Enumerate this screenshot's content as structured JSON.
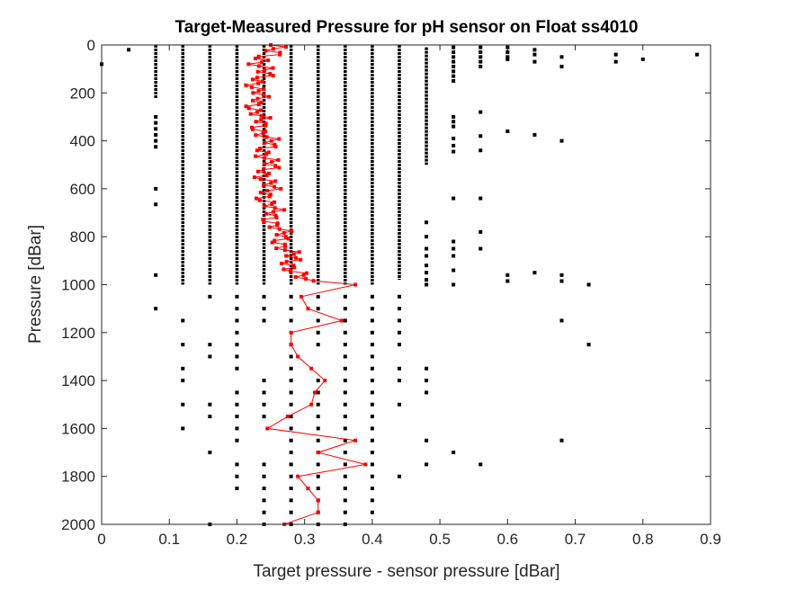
{
  "chart_data": {
    "type": "scatter",
    "title": "Target-Measured Pressure for pH sensor on Float ss4010",
    "xlabel": "Target pressure - sensor pressure [dBar]",
    "ylabel": "Pressure [dBar]",
    "xlim": [
      0,
      0.9
    ],
    "ylim": [
      0,
      2000
    ],
    "y_reversed": true,
    "x_ticks": [
      "0",
      "0.1",
      "0.2",
      "0.3",
      "0.4",
      "0.5",
      "0.6",
      "0.7",
      "0.8",
      "0.9"
    ],
    "y_ticks": [
      "0",
      "200",
      "400",
      "600",
      "800",
      "1000",
      "1200",
      "1400",
      "1600",
      "1800",
      "2000"
    ],
    "grid": false,
    "colors": {
      "black_series": "#000000",
      "red_series": "#ff0000"
    },
    "series": [
      {
        "style": "black square markers, dense columns (0-1000 dBar) at discrete offsets",
        "columns": [
          {
            "x": 0.08,
            "ymin": 0,
            "ymax": 225
          },
          {
            "x": 0.12,
            "ymin": 0,
            "ymax": 1000
          },
          {
            "x": 0.16,
            "ymin": 0,
            "ymax": 1000
          },
          {
            "x": 0.2,
            "ymin": 0,
            "ymax": 1000
          },
          {
            "x": 0.24,
            "ymin": 0,
            "ymax": 1000
          },
          {
            "x": 0.28,
            "ymin": 0,
            "ymax": 1000
          },
          {
            "x": 0.32,
            "ymin": 0,
            "ymax": 1000
          },
          {
            "x": 0.36,
            "ymin": 0,
            "ymax": 1000
          },
          {
            "x": 0.4,
            "ymin": 0,
            "ymax": 1000
          },
          {
            "x": 0.44,
            "ymin": 0,
            "ymax": 980
          },
          {
            "x": 0.48,
            "ymin": 10,
            "ymax": 500
          }
        ],
        "points": [
          [
            0,
            80
          ],
          [
            0.04,
            20
          ],
          [
            0.08,
            300
          ],
          [
            0.08,
            325
          ],
          [
            0.08,
            350
          ],
          [
            0.08,
            375
          ],
          [
            0.08,
            400
          ],
          [
            0.08,
            425
          ],
          [
            0.08,
            600
          ],
          [
            0.08,
            665
          ],
          [
            0.08,
            960
          ],
          [
            0.48,
            740
          ],
          [
            0.48,
            800
          ],
          [
            0.48,
            850
          ],
          [
            0.48,
            880
          ],
          [
            0.48,
            920
          ],
          [
            0.48,
            950
          ],
          [
            0.48,
            980
          ],
          [
            0.48,
            1000
          ],
          [
            0.52,
            10
          ],
          [
            0.52,
            30
          ],
          [
            0.52,
            50
          ],
          [
            0.52,
            70
          ],
          [
            0.52,
            90
          ],
          [
            0.52,
            110
          ],
          [
            0.52,
            130
          ],
          [
            0.52,
            150
          ],
          [
            0.52,
            300
          ],
          [
            0.52,
            320
          ],
          [
            0.52,
            340
          ],
          [
            0.52,
            390
          ],
          [
            0.52,
            420
          ],
          [
            0.52,
            445
          ],
          [
            0.52,
            640
          ],
          [
            0.52,
            820
          ],
          [
            0.52,
            850
          ],
          [
            0.52,
            880
          ],
          [
            0.52,
            940
          ],
          [
            0.52,
            1000
          ],
          [
            0.56,
            10
          ],
          [
            0.56,
            30
          ],
          [
            0.56,
            50
          ],
          [
            0.56,
            70
          ],
          [
            0.56,
            90
          ],
          [
            0.56,
            280
          ],
          [
            0.56,
            380
          ],
          [
            0.56,
            440
          ],
          [
            0.56,
            640
          ],
          [
            0.56,
            780
          ],
          [
            0.56,
            850
          ],
          [
            0.6,
            10
          ],
          [
            0.6,
            30
          ],
          [
            0.6,
            50
          ],
          [
            0.6,
            60
          ],
          [
            0.6,
            360
          ],
          [
            0.6,
            960
          ],
          [
            0.6,
            985
          ],
          [
            0.64,
            20
          ],
          [
            0.64,
            40
          ],
          [
            0.64,
            70
          ],
          [
            0.64,
            375
          ],
          [
            0.64,
            950
          ],
          [
            0.68,
            50
          ],
          [
            0.68,
            90
          ],
          [
            0.68,
            400
          ],
          [
            0.68,
            960
          ],
          [
            0.68,
            985
          ],
          [
            0.72,
            1000
          ],
          [
            0.76,
            40
          ],
          [
            0.76,
            70
          ],
          [
            0.8,
            60
          ],
          [
            0.88,
            40
          ],
          [
            0.08,
            1100
          ],
          [
            0.12,
            1150
          ],
          [
            0.12,
            1250
          ],
          [
            0.12,
            1350
          ],
          [
            0.12,
            1400
          ],
          [
            0.12,
            1500
          ],
          [
            0.12,
            1600
          ],
          [
            0.16,
            1050
          ],
          [
            0.16,
            1250
          ],
          [
            0.16,
            1300
          ],
          [
            0.16,
            1500
          ],
          [
            0.16,
            1550
          ],
          [
            0.16,
            1700
          ],
          [
            0.16,
            2000
          ],
          [
            0.2,
            1050
          ],
          [
            0.2,
            1100
          ],
          [
            0.2,
            1150
          ],
          [
            0.2,
            1200
          ],
          [
            0.2,
            1250
          ],
          [
            0.2,
            1300
          ],
          [
            0.2,
            1350
          ],
          [
            0.2,
            1450
          ],
          [
            0.2,
            1500
          ],
          [
            0.2,
            1550
          ],
          [
            0.2,
            1600
          ],
          [
            0.2,
            1650
          ],
          [
            0.2,
            1750
          ],
          [
            0.2,
            1800
          ],
          [
            0.2,
            1850
          ],
          [
            0.24,
            1050
          ],
          [
            0.24,
            1100
          ],
          [
            0.24,
            1150
          ],
          [
            0.24,
            1400
          ],
          [
            0.24,
            1450
          ],
          [
            0.24,
            1500
          ],
          [
            0.24,
            1550
          ],
          [
            0.24,
            1750
          ],
          [
            0.24,
            1800
          ],
          [
            0.24,
            1850
          ],
          [
            0.24,
            1900
          ],
          [
            0.24,
            1950
          ],
          [
            0.24,
            2000
          ],
          [
            0.28,
            1050
          ],
          [
            0.28,
            1100
          ],
          [
            0.28,
            1150
          ],
          [
            0.28,
            1250
          ],
          [
            0.28,
            1300
          ],
          [
            0.28,
            1350
          ],
          [
            0.28,
            1400
          ],
          [
            0.28,
            1450
          ],
          [
            0.28,
            1500
          ],
          [
            0.28,
            1550
          ],
          [
            0.28,
            1600
          ],
          [
            0.28,
            1650
          ],
          [
            0.28,
            1700
          ],
          [
            0.28,
            1750
          ],
          [
            0.28,
            1800
          ],
          [
            0.28,
            1850
          ],
          [
            0.28,
            1900
          ],
          [
            0.28,
            1950
          ],
          [
            0.28,
            2000
          ],
          [
            0.32,
            1050
          ],
          [
            0.32,
            1100
          ],
          [
            0.32,
            1150
          ],
          [
            0.32,
            1200
          ],
          [
            0.32,
            1250
          ],
          [
            0.32,
            1400
          ],
          [
            0.32,
            1450
          ],
          [
            0.32,
            1500
          ],
          [
            0.32,
            1550
          ],
          [
            0.32,
            1600
          ],
          [
            0.32,
            1650
          ],
          [
            0.32,
            1700
          ],
          [
            0.32,
            1750
          ],
          [
            0.32,
            1800
          ],
          [
            0.32,
            1850
          ],
          [
            0.32,
            1900
          ],
          [
            0.32,
            1950
          ],
          [
            0.32,
            2000
          ],
          [
            0.36,
            1050
          ],
          [
            0.36,
            1100
          ],
          [
            0.36,
            1150
          ],
          [
            0.36,
            1200
          ],
          [
            0.36,
            1250
          ],
          [
            0.36,
            1300
          ],
          [
            0.36,
            1350
          ],
          [
            0.36,
            1400
          ],
          [
            0.36,
            1450
          ],
          [
            0.36,
            1500
          ],
          [
            0.36,
            1550
          ],
          [
            0.36,
            1600
          ],
          [
            0.36,
            1650
          ],
          [
            0.36,
            1700
          ],
          [
            0.36,
            1750
          ],
          [
            0.36,
            1800
          ],
          [
            0.36,
            1850
          ],
          [
            0.36,
            1900
          ],
          [
            0.36,
            1950
          ],
          [
            0.36,
            2000
          ],
          [
            0.4,
            1050
          ],
          [
            0.4,
            1100
          ],
          [
            0.4,
            1150
          ],
          [
            0.4,
            1200
          ],
          [
            0.4,
            1250
          ],
          [
            0.4,
            1300
          ],
          [
            0.4,
            1350
          ],
          [
            0.4,
            1400
          ],
          [
            0.4,
            1450
          ],
          [
            0.4,
            1500
          ],
          [
            0.4,
            1550
          ],
          [
            0.4,
            1600
          ],
          [
            0.4,
            1650
          ],
          [
            0.4,
            1700
          ],
          [
            0.4,
            1750
          ],
          [
            0.4,
            1800
          ],
          [
            0.4,
            1850
          ],
          [
            0.4,
            1900
          ],
          [
            0.4,
            1950
          ],
          [
            0.44,
            1050
          ],
          [
            0.44,
            1100
          ],
          [
            0.44,
            1150
          ],
          [
            0.44,
            1200
          ],
          [
            0.44,
            1250
          ],
          [
            0.44,
            1350
          ],
          [
            0.44,
            1400
          ],
          [
            0.44,
            1500
          ],
          [
            0.44,
            1800
          ],
          [
            0.48,
            1350
          ],
          [
            0.48,
            1400
          ],
          [
            0.48,
            1450
          ],
          [
            0.48,
            1650
          ],
          [
            0.48,
            1750
          ],
          [
            0.52,
            1700
          ],
          [
            0.56,
            1750
          ],
          [
            0.68,
            1150
          ],
          [
            0.68,
            1650
          ],
          [
            0.72,
            1250
          ]
        ]
      },
      {
        "style": "red line with square markers",
        "points_shallow_zigzag": {
          "pmin": 0,
          "pmax": 990,
          "step": 8,
          "x_center_profile": [
            [
              0,
              0.25
            ],
            [
              120,
              0.235
            ],
            [
              200,
              0.23
            ],
            [
              300,
              0.23
            ],
            [
              400,
              0.245
            ],
            [
              500,
              0.245
            ],
            [
              600,
              0.245
            ],
            [
              700,
              0.25
            ],
            [
              800,
              0.265
            ],
            [
              900,
              0.28
            ],
            [
              990,
              0.295
            ]
          ],
          "x_halfwidth_profile": [
            [
              0,
              0.03
            ],
            [
              200,
              0.018
            ],
            [
              500,
              0.022
            ],
            [
              800,
              0.02
            ],
            [
              990,
              0.022
            ]
          ]
        },
        "points_deep": [
          [
            0.375,
            1000
          ],
          [
            0.295,
            1050
          ],
          [
            0.305,
            1100
          ],
          [
            0.355,
            1150
          ],
          [
            0.28,
            1200
          ],
          [
            0.28,
            1250
          ],
          [
            0.29,
            1300
          ],
          [
            0.31,
            1350
          ],
          [
            0.33,
            1400
          ],
          [
            0.315,
            1450
          ],
          [
            0.31,
            1500
          ],
          [
            0.275,
            1550
          ],
          [
            0.245,
            1600
          ],
          [
            0.375,
            1650
          ],
          [
            0.32,
            1700
          ],
          [
            0.39,
            1750
          ],
          [
            0.29,
            1800
          ],
          [
            0.305,
            1850
          ],
          [
            0.32,
            1900
          ],
          [
            0.32,
            1950
          ],
          [
            0.27,
            2000
          ]
        ]
      }
    ]
  }
}
